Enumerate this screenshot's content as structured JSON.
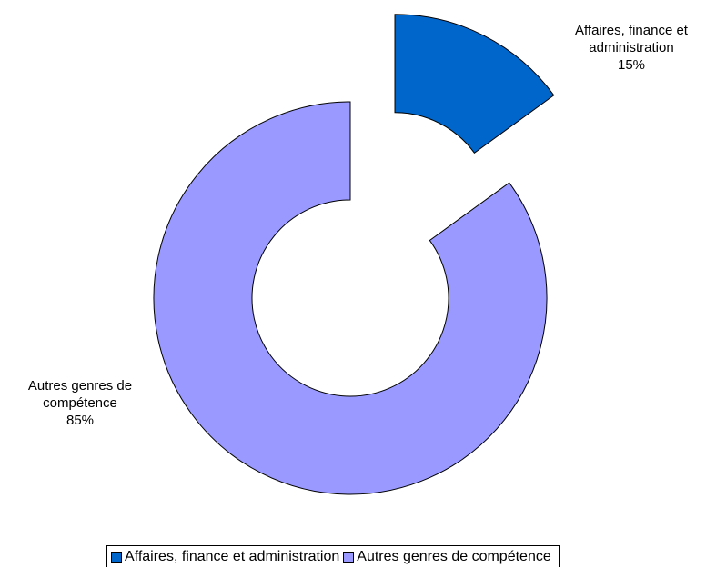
{
  "chart_data": {
    "type": "donut",
    "categories": [
      "Affaires, finance et administration",
      "Autres genres de compétence"
    ],
    "values": [
      15,
      85
    ],
    "value_labels": [
      "15%",
      "85%"
    ],
    "colors": [
      "#0066cc",
      "#9999ff"
    ],
    "legend": "bottom"
  }
}
